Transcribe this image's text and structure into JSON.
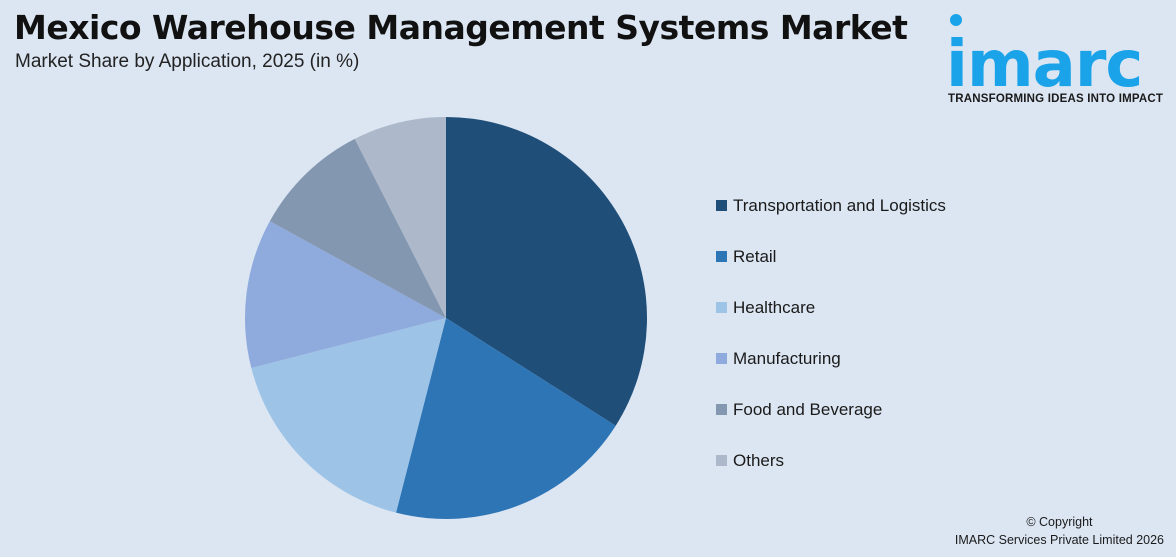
{
  "header": {
    "title": "Mexico Warehouse Management Systems Market",
    "subtitle": "Market Share by Application, 2025 (in %)"
  },
  "logo": {
    "wordmark": "imarc",
    "tagline": "TRANSFORMING IDEAS INTO IMPACT",
    "color": "#1aa3e8"
  },
  "chart_data": {
    "type": "pie",
    "categories": [
      "Transportation and Logistics",
      "Retail",
      "Healthcare",
      "Manufacturing",
      "Food and Beverage",
      "Others"
    ],
    "values": [
      34,
      20,
      17,
      12,
      9.5,
      7.5
    ],
    "colors": [
      "#1f4e79",
      "#2e75b6",
      "#9dc3e6",
      "#8faadc",
      "#8497b0",
      "#adb9ca"
    ],
    "start_angle_deg": 0,
    "direction": "clockwise",
    "legend_position": "right"
  },
  "footer": {
    "copyright_line1": "© Copyright",
    "copyright_line2": "IMARC Services Private Limited 2026"
  }
}
